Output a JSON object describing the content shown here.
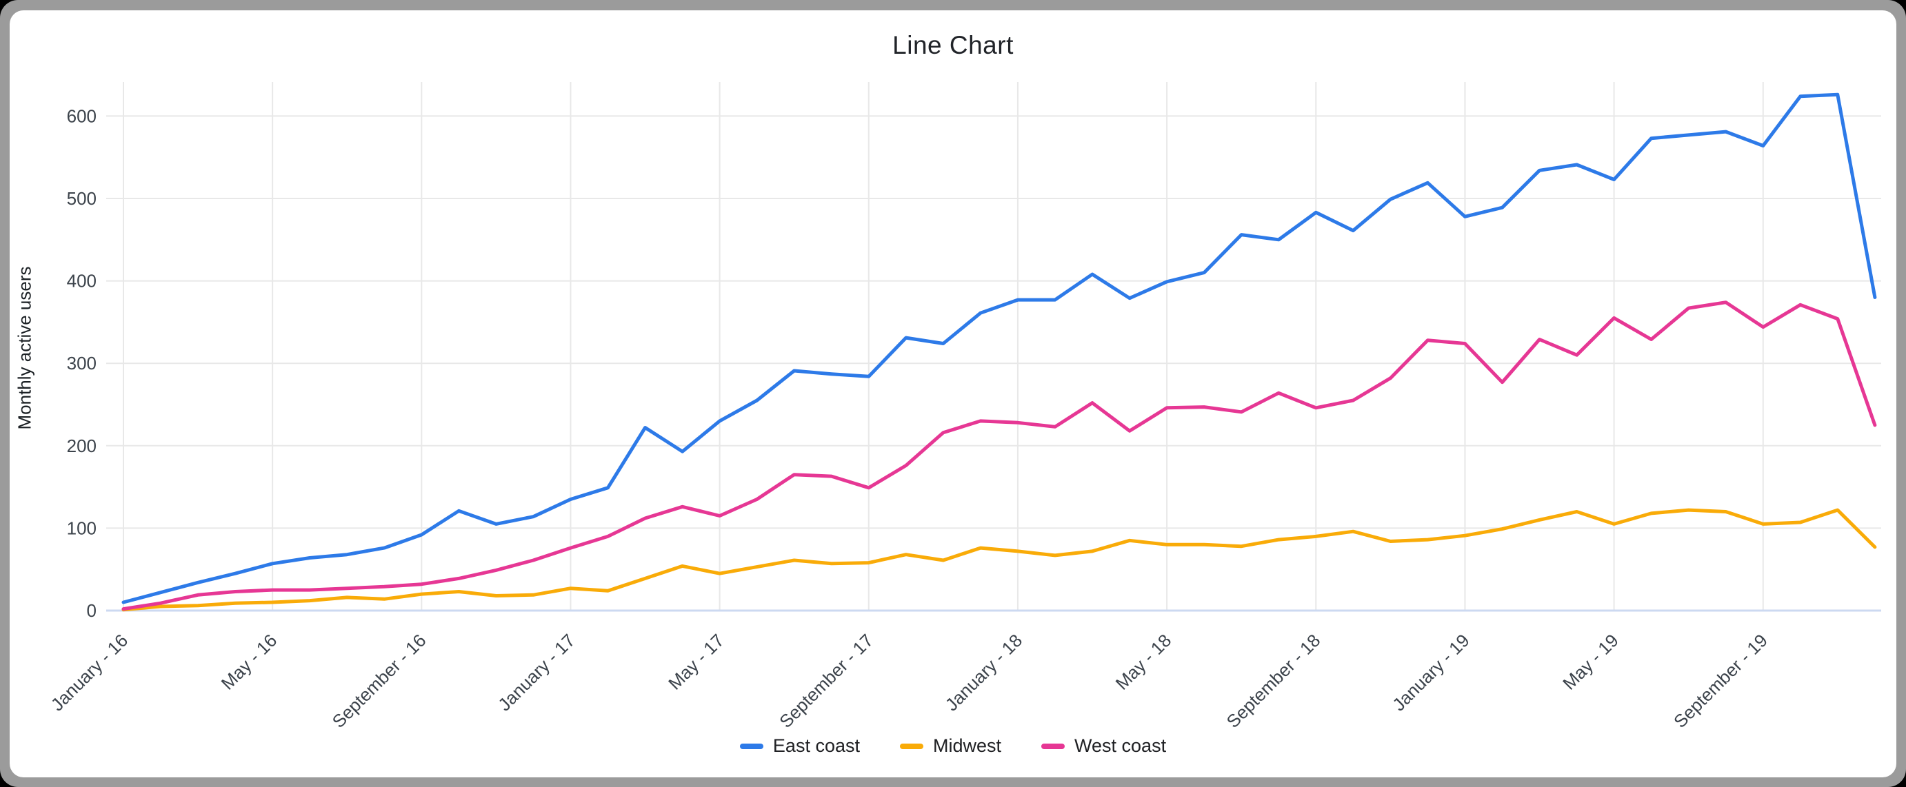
{
  "window": {
    "frame_color": "#9b9b9b",
    "card_color": "#ffffff"
  },
  "chart_data": {
    "type": "line",
    "title": "Line Chart",
    "xlabel": "",
    "ylabel": "Monthly active users",
    "ylim": [
      0,
      600
    ],
    "ytick_step": 100,
    "ytick_labels": [
      "0",
      "100",
      "200",
      "300",
      "400",
      "500",
      "600"
    ],
    "grid": true,
    "legend_position": "bottom",
    "tick_every": 4,
    "xtick_labels": [
      "January - 16",
      "May - 16",
      "September - 16",
      "January - 17",
      "May - 17",
      "September - 17",
      "January - 18",
      "May - 18",
      "September - 18",
      "January - 19",
      "May - 19",
      "September - 19"
    ],
    "x": [
      "January - 16",
      "February - 16",
      "March - 16",
      "April - 16",
      "May - 16",
      "June - 16",
      "July - 16",
      "August - 16",
      "September - 16",
      "October - 16",
      "November - 16",
      "December - 16",
      "January - 17",
      "February - 17",
      "March - 17",
      "April - 17",
      "May - 17",
      "June - 17",
      "July - 17",
      "August - 17",
      "September - 17",
      "October - 17",
      "November - 17",
      "December - 17",
      "January - 18",
      "February - 18",
      "March - 18",
      "April - 18",
      "May - 18",
      "June - 18",
      "July - 18",
      "August - 18",
      "September - 18",
      "October - 18",
      "November - 18",
      "December - 18",
      "January - 19",
      "February - 19",
      "March - 19",
      "April - 19",
      "May - 19",
      "June - 19",
      "July - 19",
      "August - 19",
      "September - 19",
      "October - 19",
      "November - 19",
      "December - 19"
    ],
    "series": [
      {
        "name": "East coast",
        "color": "#2d7ae8",
        "values": [
          10,
          22,
          34,
          45,
          57,
          64,
          68,
          76,
          92,
          121,
          105,
          114,
          135,
          149,
          222,
          193,
          230,
          255,
          291,
          287,
          284,
          331,
          324,
          361,
          377,
          377,
          408,
          379,
          399,
          410,
          456,
          450,
          483,
          461,
          499,
          519,
          478,
          489,
          534,
          541,
          523,
          573,
          577,
          581,
          564,
          624,
          626,
          380
        ]
      },
      {
        "name": "Midwest",
        "color": "#f9ab08",
        "values": [
          1,
          5,
          6,
          9,
          10,
          12,
          16,
          14,
          20,
          23,
          18,
          19,
          27,
          24,
          39,
          54,
          45,
          53,
          61,
          57,
          58,
          68,
          61,
          76,
          72,
          67,
          72,
          85,
          80,
          80,
          78,
          86,
          90,
          96,
          84,
          86,
          91,
          99,
          110,
          120,
          105,
          118,
          122,
          120,
          105,
          107,
          122,
          77
        ]
      },
      {
        "name": "West coast",
        "color": "#e63794",
        "values": [
          2,
          9,
          19,
          23,
          25,
          25,
          27,
          29,
          32,
          39,
          49,
          61,
          76,
          90,
          112,
          126,
          115,
          135,
          165,
          163,
          149,
          176,
          216,
          230,
          228,
          223,
          252,
          218,
          246,
          247,
          241,
          264,
          246,
          255,
          282,
          328,
          324,
          277,
          329,
          310,
          355,
          329,
          367,
          374,
          344,
          371,
          354,
          225
        ]
      }
    ],
    "style": {
      "grid_color": "#e8e8e8",
      "baseline_color": "#ccd9f1",
      "tick_text_color": "#3c434b",
      "line_width": 5
    }
  }
}
